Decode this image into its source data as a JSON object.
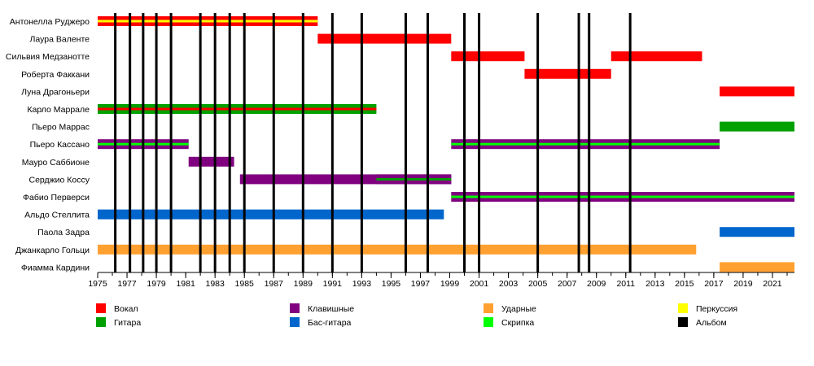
{
  "chart_data": {
    "type": "timeline",
    "x_range": [
      1975,
      2022.5
    ],
    "x_ticks": [
      1975,
      1977,
      1979,
      1981,
      1983,
      1985,
      1987,
      1989,
      1991,
      1993,
      1995,
      1997,
      1999,
      2001,
      2003,
      2005,
      2007,
      2009,
      2011,
      2013,
      2015,
      2017,
      2019,
      2021
    ],
    "members": [
      "Антонелла Руджеро",
      "Лаура Валенте",
      "Сильвия Медзанотте",
      "Роберта Факкани",
      "Луна Драгоньери",
      "Карло Маррале",
      "Пьеро Маррас",
      "Пьеро Кассано",
      "Мауро Саббионе",
      "Серджио Коссу",
      "Фабио Перверси",
      "Альдо Стеллита",
      "Паола Задра",
      "Джанкарло Гольци",
      "Фиамма Кардини"
    ],
    "albums": [
      1976.2,
      1977.2,
      1978.1,
      1979.0,
      1980.0,
      1982.0,
      1983.0,
      1984.0,
      1985.0,
      1987.0,
      1989.0,
      1991.0,
      1993.0,
      1996.0,
      1997.5,
      2000.0,
      2001.0,
      2005.0,
      2007.8,
      2008.5,
      2011.3
    ],
    "bars": [
      {
        "member": 0,
        "start": 1975,
        "end": 1990.0,
        "role": "vocal",
        "accent": "percussion"
      },
      {
        "member": 1,
        "start": 1990.0,
        "end": 1999.1,
        "role": "vocal"
      },
      {
        "member": 2,
        "start": 1999.1,
        "end": 2004.1,
        "role": "vocal"
      },
      {
        "member": 2,
        "start": 2010.0,
        "end": 2016.2,
        "role": "vocal"
      },
      {
        "member": 3,
        "start": 2004.1,
        "end": 2010.0,
        "role": "vocal"
      },
      {
        "member": 4,
        "start": 2017.4,
        "end": 2022.5,
        "role": "vocal"
      },
      {
        "member": 5,
        "start": 1975,
        "end": 1994.0,
        "role": "guitar",
        "accent": "vocal"
      },
      {
        "member": 6,
        "start": 2017.4,
        "end": 2022.5,
        "role": "guitar"
      },
      {
        "member": 7,
        "start": 1975,
        "end": 1981.2,
        "role": "keyboards",
        "accent": "violin"
      },
      {
        "member": 7,
        "start": 1999.1,
        "end": 2017.4,
        "role": "keyboards",
        "accent": "violin"
      },
      {
        "member": 8,
        "start": 1981.2,
        "end": 1984.3,
        "role": "keyboards"
      },
      {
        "member": 9,
        "start": 1984.7,
        "end": 1999.1,
        "role": "keyboards"
      },
      {
        "member": 9,
        "start": 1994.0,
        "end": 1999.1,
        "role": "keyboards",
        "accent": "guitar"
      },
      {
        "member": 10,
        "start": 1999.1,
        "end": 2022.5,
        "role": "keyboards",
        "accent": "violin"
      },
      {
        "member": 11,
        "start": 1975,
        "end": 1998.6,
        "role": "bass"
      },
      {
        "member": 12,
        "start": 2017.4,
        "end": 2022.5,
        "role": "bass"
      },
      {
        "member": 13,
        "start": 1975,
        "end": 2015.8,
        "role": "drums"
      },
      {
        "member": 14,
        "start": 2017.4,
        "end": 2022.5,
        "role": "drums"
      }
    ],
    "roles": {
      "vocal": {
        "label": "Вокал",
        "color": "#ff0000"
      },
      "guitar": {
        "label": "Гитара",
        "color": "#00a000"
      },
      "keyboards": {
        "label": "Клавишные",
        "color": "#800080"
      },
      "bass": {
        "label": "Бас-гитара",
        "color": "#0066cc"
      },
      "drums": {
        "label": "Ударные",
        "color": "#ffa030"
      },
      "violin": {
        "label": "Скрипка",
        "color": "#00ff00"
      },
      "percussion": {
        "label": "Перкуссия",
        "color": "#ffff00"
      },
      "album": {
        "label": "Альбом",
        "color": "#000000"
      }
    },
    "legend_order": [
      [
        "vocal",
        "guitar"
      ],
      [
        "keyboards",
        "bass"
      ],
      [
        "drums",
        "violin"
      ],
      [
        "percussion",
        "album"
      ]
    ]
  }
}
